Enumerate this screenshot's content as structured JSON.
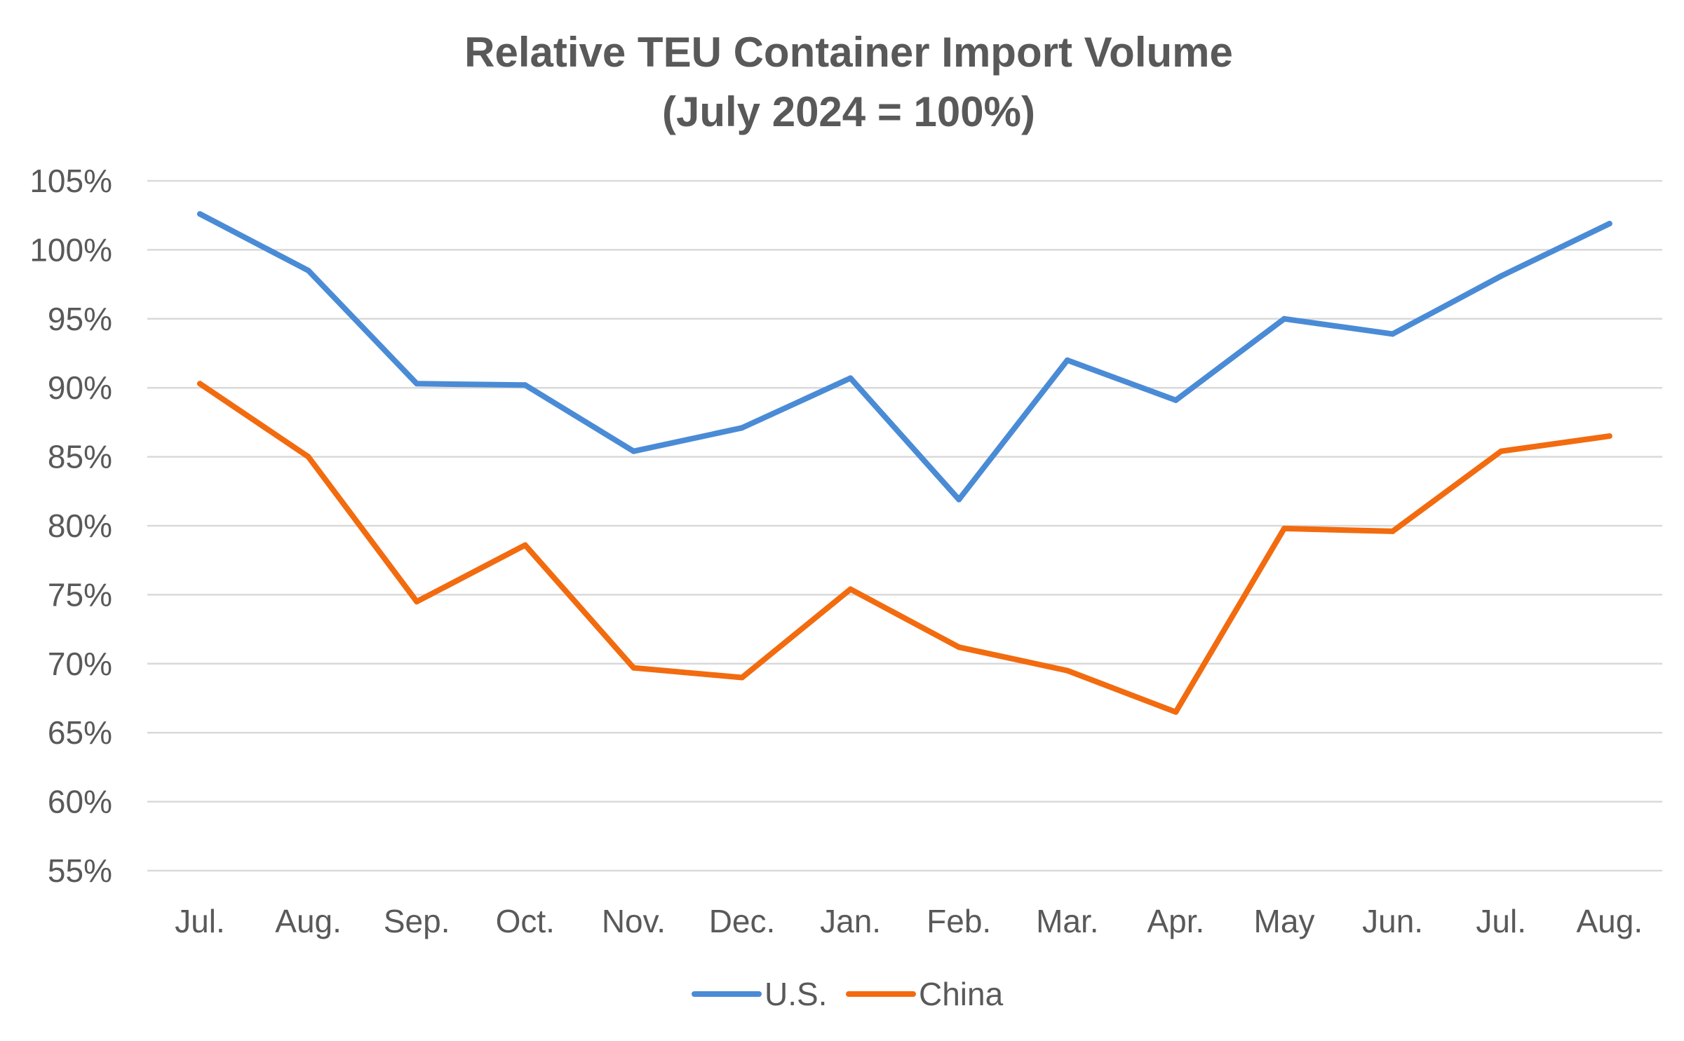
{
  "chart_data": {
    "type": "line",
    "title": "Relative TEU Container Import Volume",
    "subtitle": "(July 2024 = 100%)",
    "categories": [
      "Jul.",
      "Aug.",
      "Sep.",
      "Oct.",
      "Nov.",
      "Dec.",
      "Jan.",
      "Feb.",
      "Mar.",
      "Apr.",
      "May",
      "Jun.",
      "Jul.",
      "Aug."
    ],
    "series": [
      {
        "name": "U.S.",
        "color": "#4a8bd6",
        "values": [
          102.6,
          98.5,
          90.3,
          90.2,
          85.4,
          87.1,
          90.7,
          81.9,
          92.0,
          89.1,
          95.0,
          93.9,
          98.1,
          101.9
        ]
      },
      {
        "name": "China",
        "color": "#f26b0f",
        "values": [
          90.3,
          85.0,
          74.5,
          78.6,
          69.7,
          69.0,
          75.4,
          71.2,
          69.5,
          66.5,
          79.8,
          79.6,
          85.4,
          86.5
        ]
      }
    ],
    "y_ticks": [
      "105%",
      "100%",
      "95%",
      "90%",
      "85%",
      "80%",
      "75%",
      "70%",
      "65%",
      "60%",
      "55%"
    ],
    "ylim": [
      55,
      105
    ],
    "y_tick_step": 5,
    "grid": true,
    "legend_position": "bottom"
  }
}
